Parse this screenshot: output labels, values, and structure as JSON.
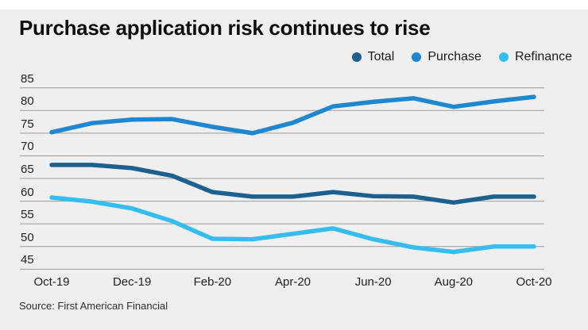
{
  "title": "Purchase application risk continues to rise",
  "source": "Source: First American Financial",
  "legend": [
    {
      "label": "Total",
      "color": "#1c608f",
      "icon": "dot"
    },
    {
      "label": "Purchase",
      "color": "#1e87d2",
      "icon": "dot"
    },
    {
      "label": "Refinance",
      "color": "#36bdf0",
      "icon": "dot"
    }
  ],
  "colors": {
    "background": "#efeff0",
    "gridline": "#9c9c9c",
    "text": "#1e1e1e"
  },
  "chart_data": {
    "type": "line",
    "title": "Purchase application risk continues to rise",
    "x": [
      "Oct-19",
      "Nov-19",
      "Dec-19",
      "Jan-20",
      "Feb-20",
      "Mar-20",
      "Apr-20",
      "May-20",
      "Jun-20",
      "Jul-20",
      "Aug-20",
      "Sep-20",
      "Oct-20"
    ],
    "x_tick_labels": [
      "Oct-19",
      "Dec-19",
      "Feb-20",
      "Apr-20",
      "Jun-20",
      "Aug-20",
      "Oct-20"
    ],
    "y_ticks": [
      85,
      80,
      75,
      70,
      65,
      60,
      55,
      50,
      45
    ],
    "ylim": [
      45,
      87
    ],
    "grid": true,
    "legend_position": "top-right",
    "series": [
      {
        "name": "Total",
        "color": "#1c608f",
        "values": [
          68.0,
          68.0,
          67.3,
          65.6,
          62.0,
          61.0,
          61.0,
          62.0,
          61.1,
          61.0,
          59.7,
          61.0,
          61.0
        ]
      },
      {
        "name": "Purchase",
        "color": "#1e87d2",
        "values": [
          75.2,
          77.2,
          78.0,
          78.1,
          76.4,
          75.0,
          77.3,
          80.9,
          81.9,
          82.7,
          80.8,
          82.0,
          83.0
        ]
      },
      {
        "name": "Refinance",
        "color": "#36bdf0",
        "values": [
          60.8,
          59.9,
          58.4,
          55.6,
          51.7,
          51.6,
          52.8,
          54.0,
          51.6,
          49.8,
          48.8,
          50.0,
          50.0
        ]
      }
    ]
  }
}
